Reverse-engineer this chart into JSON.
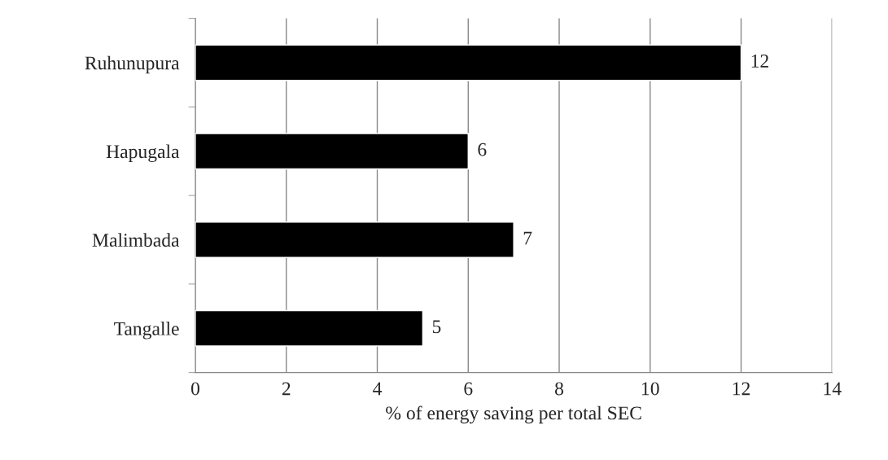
{
  "chart_data": {
    "type": "bar",
    "orientation": "horizontal",
    "xlabel": "% of energy saving per total SEC",
    "categories": [
      "Ruhunupura",
      "Hapugala",
      "Malimbada",
      "Tangalle"
    ],
    "values": [
      12,
      6,
      7,
      5
    ],
    "color": "#000000",
    "xlim": [
      0,
      14
    ],
    "xticks": [
      0,
      2,
      4,
      6,
      8,
      10,
      12,
      14
    ],
    "grid": "x",
    "data_labels": true
  }
}
